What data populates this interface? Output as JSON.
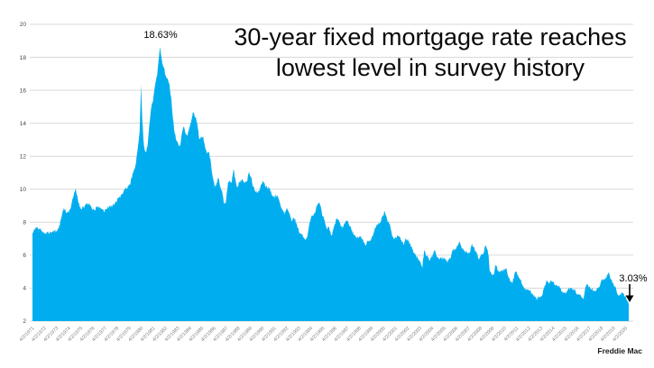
{
  "title": {
    "line1": "30-year fixed mortgage rate reaches",
    "line2": "lowest level in survey history"
  },
  "annotations": {
    "peak_label": "18.63%",
    "low_label": "3.03%"
  },
  "source_label": "Freddie Mac",
  "colors": {
    "area": "#00AEEF",
    "gridline": "#D9D9D9",
    "y_axis_text": "#444444",
    "x_axis_text": "#808080",
    "title_text": "#0A0A0A",
    "annotation_text": "#000000"
  },
  "chart_data": {
    "type": "area",
    "title": "30-year fixed mortgage rate reaches lowest level in survey history",
    "series_name": "30-year fixed mortgage rate (Freddie Mac weekly survey)",
    "xlabel": "",
    "ylabel": "",
    "grid": "horizontal",
    "legend": "none",
    "ylim": [
      2,
      20
    ],
    "xlim": [
      1971.25,
      2020.5
    ],
    "y_ticks": [
      2,
      4,
      6,
      8,
      10,
      12,
      14,
      16,
      18,
      20
    ],
    "x_tick_labels": [
      "4/2/1971",
      "4/2/1972",
      "4/2/1973",
      "4/2/1974",
      "4/2/1975",
      "4/2/1976",
      "4/2/1977",
      "4/2/1978",
      "4/2/1979",
      "4/2/1980",
      "4/2/1981",
      "4/2/1982",
      "4/2/1983",
      "4/2/1984",
      "4/2/1985",
      "4/2/1986",
      "4/2/1987",
      "4/2/1988",
      "4/2/1989",
      "4/2/1990",
      "4/2/1991",
      "4/2/1992",
      "4/2/1993",
      "4/2/1994",
      "4/2/1995",
      "4/2/1996",
      "4/2/1997",
      "4/2/1998",
      "4/2/1999",
      "4/2/2000",
      "4/2/2001",
      "4/2/2002",
      "4/2/2003",
      "4/2/2004",
      "4/2/2005",
      "4/2/2006",
      "4/2/2007",
      "4/2/2008",
      "4/2/2009",
      "4/2/2010",
      "4/2/2011",
      "4/2/2012",
      "4/2/2013",
      "4/2/2014",
      "4/2/2015",
      "4/2/2016",
      "4/2/2017",
      "4/2/2018",
      "4/2/2019",
      "4/2/2020"
    ],
    "peak_annotation": {
      "x": 1981.78,
      "y": 18.63,
      "text": "18.63%"
    },
    "end_annotation": {
      "x": 2020.5,
      "y": 3.03,
      "text": "3.03%"
    },
    "points": [
      [
        1971.25,
        7.33
      ],
      [
        1971.45,
        7.55
      ],
      [
        1971.65,
        7.7
      ],
      [
        1971.85,
        7.6
      ],
      [
        1972.05,
        7.45
      ],
      [
        1972.25,
        7.3
      ],
      [
        1972.5,
        7.37
      ],
      [
        1972.75,
        7.4
      ],
      [
        1973.0,
        7.44
      ],
      [
        1973.25,
        7.5
      ],
      [
        1973.5,
        7.8
      ],
      [
        1973.7,
        8.5
      ],
      [
        1973.85,
        8.85
      ],
      [
        1974.05,
        8.55
      ],
      [
        1974.25,
        8.6
      ],
      [
        1974.45,
        9.0
      ],
      [
        1974.65,
        9.6
      ],
      [
        1974.8,
        10.03
      ],
      [
        1975.0,
        9.4
      ],
      [
        1975.15,
        8.9
      ],
      [
        1975.35,
        8.85
      ],
      [
        1975.55,
        8.95
      ],
      [
        1975.75,
        9.1
      ],
      [
        1975.95,
        9.15
      ],
      [
        1976.15,
        8.85
      ],
      [
        1976.35,
        8.75
      ],
      [
        1976.55,
        8.9
      ],
      [
        1976.75,
        8.95
      ],
      [
        1976.95,
        8.8
      ],
      [
        1977.15,
        8.65
      ],
      [
        1977.35,
        8.8
      ],
      [
        1977.6,
        8.95
      ],
      [
        1977.85,
        9.0
      ],
      [
        1978.1,
        9.15
      ],
      [
        1978.35,
        9.45
      ],
      [
        1978.6,
        9.65
      ],
      [
        1978.85,
        10.0
      ],
      [
        1979.1,
        10.1
      ],
      [
        1979.35,
        10.4
      ],
      [
        1979.6,
        11.1
      ],
      [
        1979.8,
        11.6
      ],
      [
        1979.95,
        12.5
      ],
      [
        1980.1,
        13.5
      ],
      [
        1980.22,
        16.35
      ],
      [
        1980.32,
        14.2
      ],
      [
        1980.45,
        12.7
      ],
      [
        1980.6,
        12.25
      ],
      [
        1980.75,
        12.6
      ],
      [
        1980.9,
        13.9
      ],
      [
        1981.05,
        14.9
      ],
      [
        1981.2,
        15.3
      ],
      [
        1981.35,
        16.2
      ],
      [
        1981.45,
        16.6
      ],
      [
        1981.55,
        16.9
      ],
      [
        1981.65,
        17.7
      ],
      [
        1981.78,
        18.63
      ],
      [
        1981.88,
        18.1
      ],
      [
        1981.98,
        17.6
      ],
      [
        1982.1,
        17.4
      ],
      [
        1982.25,
        16.9
      ],
      [
        1982.4,
        16.75
      ],
      [
        1982.55,
        16.4
      ],
      [
        1982.7,
        15.6
      ],
      [
        1982.85,
        14.3
      ],
      [
        1983.0,
        13.4
      ],
      [
        1983.15,
        12.95
      ],
      [
        1983.3,
        12.7
      ],
      [
        1983.45,
        12.65
      ],
      [
        1983.6,
        13.45
      ],
      [
        1983.75,
        13.8
      ],
      [
        1983.9,
        13.35
      ],
      [
        1984.05,
        13.25
      ],
      [
        1984.25,
        13.8
      ],
      [
        1984.45,
        14.45
      ],
      [
        1984.55,
        14.67
      ],
      [
        1984.7,
        14.35
      ],
      [
        1984.85,
        14.05
      ],
      [
        1985.0,
        13.15
      ],
      [
        1985.2,
        13.1
      ],
      [
        1985.35,
        13.2
      ],
      [
        1985.5,
        12.55
      ],
      [
        1985.65,
        12.2
      ],
      [
        1985.85,
        12.2
      ],
      [
        1986.0,
        11.5
      ],
      [
        1986.15,
        10.7
      ],
      [
        1986.3,
        10.1
      ],
      [
        1986.45,
        10.35
      ],
      [
        1986.6,
        10.7
      ],
      [
        1986.75,
        10.15
      ],
      [
        1986.9,
        9.95
      ],
      [
        1987.05,
        9.15
      ],
      [
        1987.2,
        9.1
      ],
      [
        1987.4,
        10.45
      ],
      [
        1987.55,
        10.55
      ],
      [
        1987.7,
        10.35
      ],
      [
        1987.85,
        11.2
      ],
      [
        1988.0,
        10.65
      ],
      [
        1988.15,
        10.1
      ],
      [
        1988.35,
        10.45
      ],
      [
        1988.55,
        10.6
      ],
      [
        1988.75,
        10.4
      ],
      [
        1988.95,
        10.45
      ],
      [
        1989.15,
        11.05
      ],
      [
        1989.3,
        10.75
      ],
      [
        1989.45,
        10.15
      ],
      [
        1989.65,
        9.9
      ],
      [
        1989.85,
        9.8
      ],
      [
        1990.05,
        10.05
      ],
      [
        1990.25,
        10.45
      ],
      [
        1990.45,
        10.25
      ],
      [
        1990.65,
        10.05
      ],
      [
        1990.85,
        10.1
      ],
      [
        1991.0,
        9.65
      ],
      [
        1991.2,
        9.5
      ],
      [
        1991.45,
        9.6
      ],
      [
        1991.65,
        9.25
      ],
      [
        1991.9,
        8.75
      ],
      [
        1992.05,
        8.45
      ],
      [
        1992.25,
        8.85
      ],
      [
        1992.45,
        8.55
      ],
      [
        1992.65,
        8.05
      ],
      [
        1992.85,
        8.3
      ],
      [
        1993.05,
        7.95
      ],
      [
        1993.25,
        7.45
      ],
      [
        1993.5,
        7.25
      ],
      [
        1993.75,
        6.95
      ],
      [
        1993.95,
        7.1
      ],
      [
        1994.15,
        8.0
      ],
      [
        1994.35,
        8.45
      ],
      [
        1994.55,
        8.55
      ],
      [
        1994.75,
        9.0
      ],
      [
        1994.95,
        9.2
      ],
      [
        1995.15,
        8.55
      ],
      [
        1995.35,
        8.15
      ],
      [
        1995.55,
        7.6
      ],
      [
        1995.75,
        7.7
      ],
      [
        1995.95,
        7.2
      ],
      [
        1996.15,
        7.7
      ],
      [
        1996.35,
        8.25
      ],
      [
        1996.55,
        8.15
      ],
      [
        1996.75,
        7.7
      ],
      [
        1996.95,
        7.8
      ],
      [
        1997.15,
        8.1
      ],
      [
        1997.35,
        7.95
      ],
      [
        1997.6,
        7.5
      ],
      [
        1997.85,
        7.2
      ],
      [
        1998.05,
        7.05
      ],
      [
        1998.3,
        7.15
      ],
      [
        1998.55,
        6.95
      ],
      [
        1998.75,
        6.6
      ],
      [
        1998.95,
        6.85
      ],
      [
        1999.2,
        6.95
      ],
      [
        1999.45,
        7.4
      ],
      [
        1999.7,
        7.85
      ],
      [
        1999.95,
        7.95
      ],
      [
        2000.15,
        8.3
      ],
      [
        2000.35,
        8.64
      ],
      [
        2000.55,
        8.15
      ],
      [
        2000.8,
        7.75
      ],
      [
        2001.0,
        7.1
      ],
      [
        2001.2,
        7.0
      ],
      [
        2001.45,
        7.15
      ],
      [
        2001.7,
        6.95
      ],
      [
        2001.9,
        6.6
      ],
      [
        2002.1,
        7.0
      ],
      [
        2002.3,
        6.85
      ],
      [
        2002.55,
        6.5
      ],
      [
        2002.8,
        6.1
      ],
      [
        2003.05,
        5.85
      ],
      [
        2003.3,
        5.6
      ],
      [
        2003.45,
        5.21
      ],
      [
        2003.6,
        6.3
      ],
      [
        2003.8,
        5.95
      ],
      [
        2004.05,
        5.7
      ],
      [
        2004.3,
        6.0
      ],
      [
        2004.45,
        6.3
      ],
      [
        2004.65,
        5.9
      ],
      [
        2004.85,
        5.75
      ],
      [
        2005.05,
        5.8
      ],
      [
        2005.3,
        5.85
      ],
      [
        2005.5,
        5.6
      ],
      [
        2005.75,
        5.8
      ],
      [
        2005.95,
        6.3
      ],
      [
        2006.15,
        6.3
      ],
      [
        2006.35,
        6.55
      ],
      [
        2006.55,
        6.8
      ],
      [
        2006.75,
        6.4
      ],
      [
        2006.95,
        6.25
      ],
      [
        2007.2,
        6.15
      ],
      [
        2007.4,
        6.2
      ],
      [
        2007.55,
        6.7
      ],
      [
        2007.75,
        6.45
      ],
      [
        2007.95,
        6.1
      ],
      [
        2008.15,
        5.75
      ],
      [
        2008.3,
        6.05
      ],
      [
        2008.5,
        6.1
      ],
      [
        2008.65,
        6.55
      ],
      [
        2008.8,
        6.35
      ],
      [
        2008.92,
        6.0
      ],
      [
        2009.0,
        5.1
      ],
      [
        2009.15,
        4.85
      ],
      [
        2009.35,
        4.8
      ],
      [
        2009.5,
        5.4
      ],
      [
        2009.65,
        5.15
      ],
      [
        2009.85,
        4.95
      ],
      [
        2010.05,
        5.05
      ],
      [
        2010.25,
        5.1
      ],
      [
        2010.4,
        5.2
      ],
      [
        2010.55,
        4.7
      ],
      [
        2010.75,
        4.4
      ],
      [
        2010.9,
        4.3
      ],
      [
        2011.05,
        4.85
      ],
      [
        2011.2,
        5.0
      ],
      [
        2011.35,
        4.8
      ],
      [
        2011.55,
        4.5
      ],
      [
        2011.75,
        4.1
      ],
      [
        2011.95,
        3.95
      ],
      [
        2012.15,
        3.9
      ],
      [
        2012.35,
        3.85
      ],
      [
        2012.55,
        3.6
      ],
      [
        2012.75,
        3.45
      ],
      [
        2012.95,
        3.35
      ],
      [
        2013.15,
        3.45
      ],
      [
        2013.35,
        3.55
      ],
      [
        2013.55,
        4.15
      ],
      [
        2013.7,
        4.45
      ],
      [
        2013.9,
        4.3
      ],
      [
        2014.05,
        4.43
      ],
      [
        2014.25,
        4.35
      ],
      [
        2014.45,
        4.2
      ],
      [
        2014.65,
        4.1
      ],
      [
        2014.85,
        4.0
      ],
      [
        2015.05,
        3.7
      ],
      [
        2015.25,
        3.7
      ],
      [
        2015.45,
        3.85
      ],
      [
        2015.65,
        4.0
      ],
      [
        2015.85,
        3.9
      ],
      [
        2016.05,
        3.95
      ],
      [
        2016.25,
        3.6
      ],
      [
        2016.45,
        3.6
      ],
      [
        2016.65,
        3.45
      ],
      [
        2016.78,
        3.42
      ],
      [
        2016.92,
        4.05
      ],
      [
        2017.05,
        4.2
      ],
      [
        2017.25,
        4.1
      ],
      [
        2017.45,
        3.95
      ],
      [
        2017.65,
        3.85
      ],
      [
        2017.85,
        3.9
      ],
      [
        2018.05,
        4.05
      ],
      [
        2018.25,
        4.45
      ],
      [
        2018.45,
        4.55
      ],
      [
        2018.65,
        4.6
      ],
      [
        2018.85,
        4.94
      ],
      [
        2019.0,
        4.5
      ],
      [
        2019.2,
        4.35
      ],
      [
        2019.35,
        4.1
      ],
      [
        2019.5,
        3.8
      ],
      [
        2019.65,
        3.55
      ],
      [
        2019.8,
        3.65
      ],
      [
        2019.95,
        3.7
      ],
      [
        2020.05,
        3.72
      ],
      [
        2020.15,
        3.45
      ],
      [
        2020.25,
        3.5
      ],
      [
        2020.33,
        3.3
      ],
      [
        2020.42,
        3.2
      ],
      [
        2020.5,
        3.03
      ]
    ]
  }
}
